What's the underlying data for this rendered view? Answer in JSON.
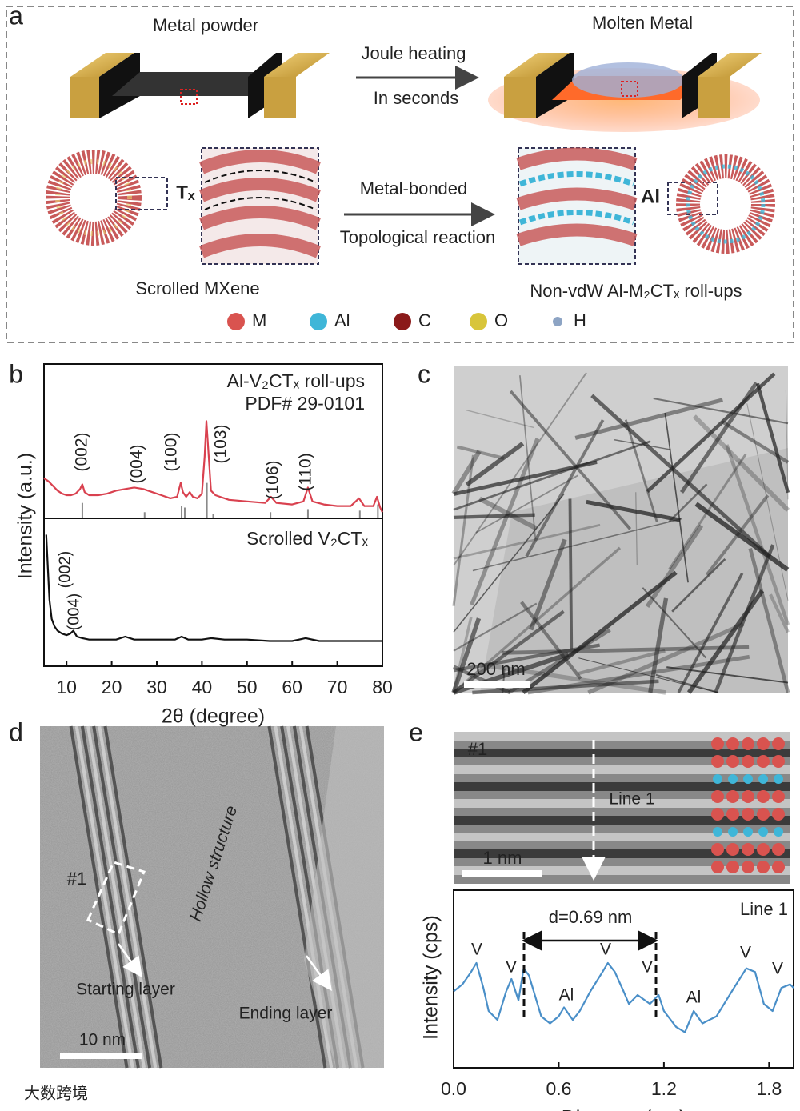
{
  "panel_labels": [
    "a",
    "b",
    "c",
    "d",
    "e"
  ],
  "schematic": {
    "metal_powder": "Metal powder",
    "joule_heating": "Joule heating",
    "in_seconds": "In seconds",
    "molten_metal": "Molten Metal",
    "tx": "Tₓ",
    "metal_bonded": "Metal-bonded",
    "topological_reaction": "Topological reaction",
    "al": "Al",
    "scrolled_mxene": "Scrolled MXene",
    "roll_ups": "Non-vdW Al-M₂CTₓ roll-ups",
    "legend": [
      {
        "label": "M",
        "color": "#d9534f"
      },
      {
        "label": "Al",
        "color": "#3fb6d8"
      },
      {
        "label": "C",
        "color": "#8b1a1a"
      },
      {
        "label": "O",
        "color": "#d8c53a"
      },
      {
        "label": "H",
        "color": "#8da4c4"
      }
    ]
  },
  "tem_c": {
    "scale_bar": "200 nm"
  },
  "tem_d": {
    "region": "#1",
    "hollow": "Hollow structure",
    "starting": "Starting layer",
    "ending": "Ending layer",
    "scale_bar": "10 nm"
  },
  "hrtem_e": {
    "region": "#1",
    "line": "Line 1",
    "scale_bar": "1 nm"
  },
  "chart_data": [
    {
      "type": "line",
      "xlim": [
        5,
        80
      ],
      "ylim": [
        0,
        100
      ],
      "series": [
        {
          "name": "Al-V₂CTₓ roll-ups",
          "color": "#d9414f",
          "x": [
            5,
            6,
            7,
            8,
            9,
            10,
            11,
            12,
            13,
            13.5,
            14,
            15,
            17,
            19,
            21,
            23,
            25,
            27,
            29,
            31,
            33,
            34.5,
            35.3,
            35.8,
            36.5,
            37.3,
            38,
            39,
            40,
            40.6,
            41,
            41.4,
            42,
            43,
            44,
            46,
            50,
            54,
            55.3,
            56.5,
            60,
            62.5,
            63.5,
            64.5,
            67,
            70,
            73,
            74.8,
            76,
            78,
            78.8,
            79.5,
            80
          ],
          "values": [
            26,
            24,
            21,
            18,
            16,
            15,
            15,
            16,
            19,
            22,
            17,
            15,
            15,
            16,
            18,
            19,
            20,
            19,
            17,
            15,
            13,
            14,
            23,
            17,
            14,
            17,
            14,
            13,
            16,
            40,
            63,
            45,
            18,
            15,
            14,
            12,
            11,
            10,
            14,
            10,
            9,
            11,
            20,
            11,
            9,
            8,
            8,
            13,
            8,
            8,
            14,
            7,
            4
          ]
        }
      ],
      "sticks": {
        "name": "PDF# 29-0101",
        "color": "#8a8a8a",
        "x": [
          13.5,
          27.3,
          35.5,
          36.2,
          41.1,
          42.5,
          55.2,
          63.5,
          75,
          79
        ],
        "values": [
          10,
          4,
          8,
          7,
          23,
          3,
          4,
          6,
          5,
          9
        ]
      },
      "annotations": [
        "(002)",
        "(004)",
        "(100)",
        "(103)",
        "(106)",
        "(110)"
      ]
    },
    {
      "type": "line",
      "xlim": [
        5,
        80
      ],
      "ylim": [
        0,
        100
      ],
      "xticks": [
        10,
        20,
        30,
        40,
        50,
        60,
        70,
        80
      ],
      "xlabel": "2θ (degree)",
      "ylabel": "Intensity (a.u.)",
      "series": [
        {
          "name": "Scrolled V₂CTₓ",
          "color": "#111111",
          "x": [
            5.5,
            5.8,
            6.2,
            6.7,
            7.3,
            8,
            9,
            10,
            10.8,
            11.5,
            12.3,
            13.5,
            15,
            18,
            21,
            23,
            25,
            28,
            31,
            34,
            35.5,
            37,
            40,
            42,
            45,
            50,
            55,
            60,
            63,
            66,
            70,
            75,
            80
          ],
          "values": [
            89,
            70,
            45,
            32,
            27,
            24,
            22,
            21,
            22,
            24,
            20,
            19,
            18,
            18,
            18,
            20,
            18,
            18,
            18,
            18,
            20,
            18,
            18,
            19,
            18,
            18,
            17,
            17,
            19,
            17,
            17,
            17,
            17
          ]
        }
      ],
      "annotations": [
        "(002)",
        "(004)"
      ]
    },
    {
      "type": "line",
      "title": "Line 1",
      "xlim": [
        0,
        1.94
      ],
      "ylim": [
        0,
        100
      ],
      "xticks": [
        {
          "value": 0,
          "label": "0.0"
        },
        0.6,
        1.2,
        1.8
      ],
      "xlabel": "Distance (nm)",
      "ylabel": "Intensity (cps)",
      "series": [
        {
          "color": "#4a8fc8",
          "x": [
            0,
            0.05,
            0.1,
            0.13,
            0.17,
            0.2,
            0.25,
            0.3,
            0.33,
            0.37,
            0.4,
            0.43,
            0.5,
            0.55,
            0.6,
            0.63,
            0.68,
            0.72,
            0.78,
            0.85,
            0.88,
            0.92,
            0.97,
            1.0,
            1.05,
            1.12,
            1.17,
            1.2,
            1.27,
            1.32,
            1.37,
            1.42,
            1.5,
            1.6,
            1.67,
            1.72,
            1.77,
            1.82,
            1.87,
            1.92,
            1.94
          ],
          "values": [
            43,
            47,
            54,
            59,
            45,
            32,
            27,
            43,
            50,
            38,
            56,
            52,
            29,
            25,
            29,
            34,
            27,
            32,
            43,
            54,
            59,
            54,
            43,
            36,
            41,
            36,
            41,
            32,
            23,
            20,
            32,
            25,
            29,
            45,
            56,
            54,
            36,
            32,
            45,
            47,
            45
          ]
        }
      ],
      "annotations": [
        "d=0.69 nm",
        "V",
        "V",
        "Al",
        "V",
        "V",
        "Al",
        "V",
        "V"
      ]
    }
  ],
  "watermark": "大数跨境"
}
